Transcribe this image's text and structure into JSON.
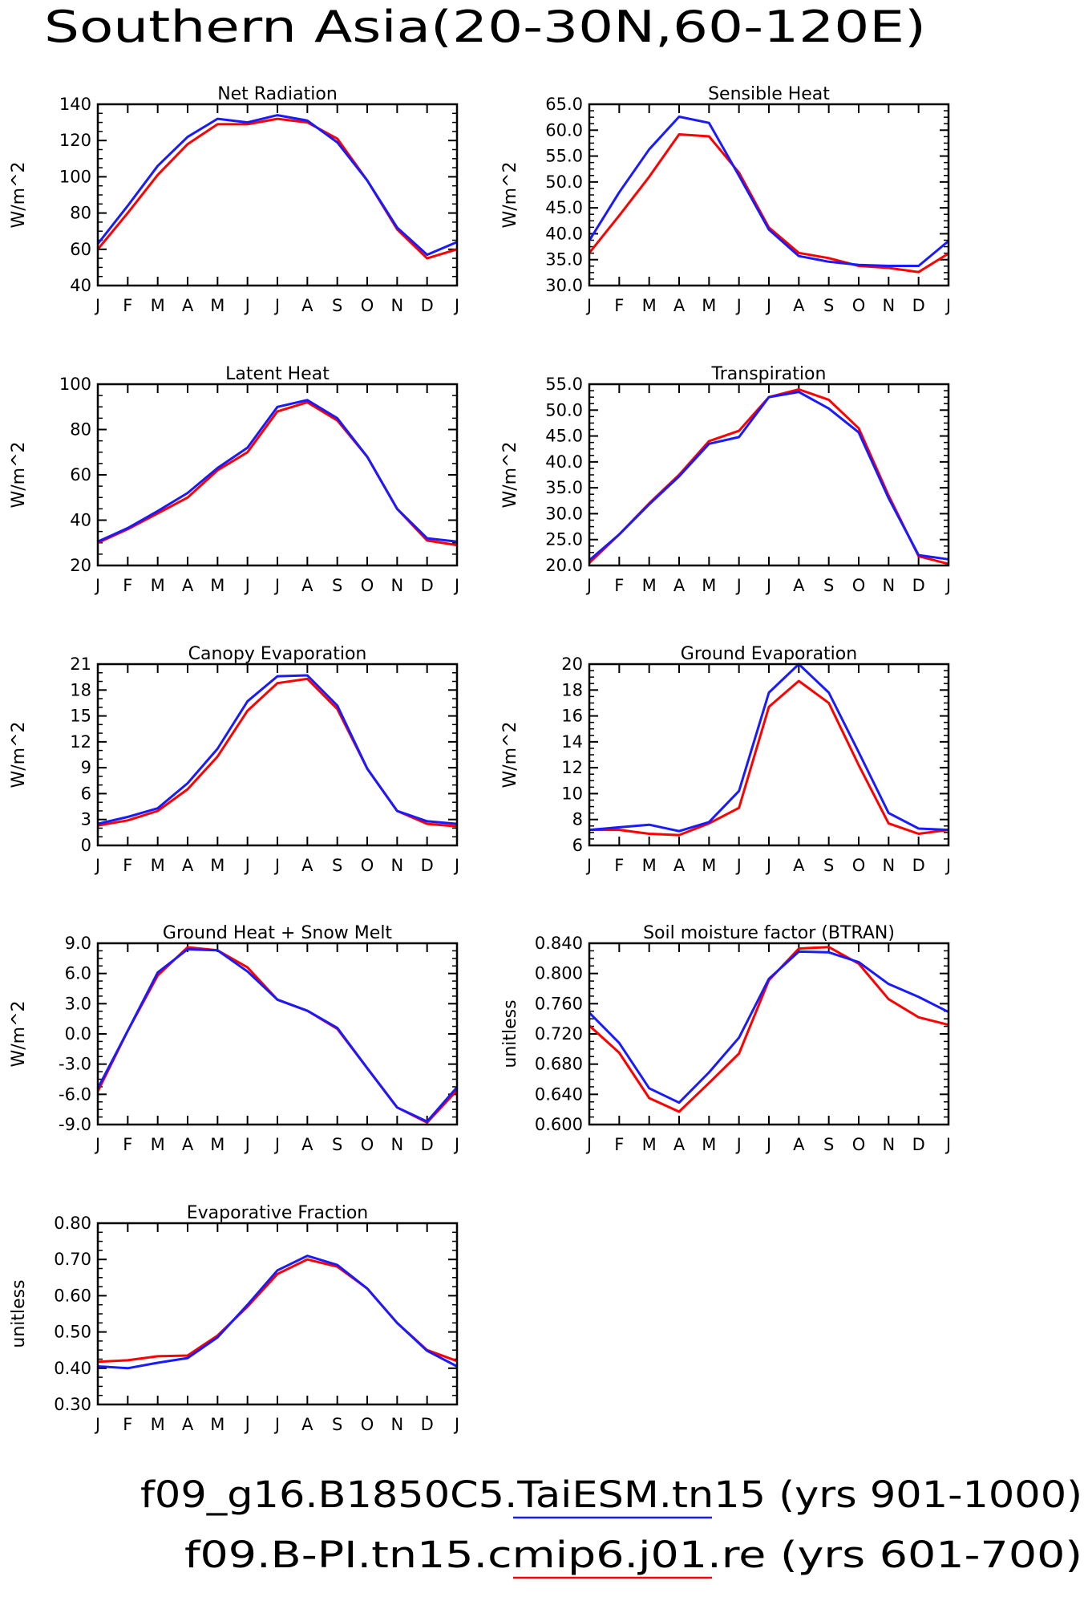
{
  "figure_title": "Southern Asia(20-30N,60-120E)",
  "months": [
    "J",
    "F",
    "M",
    "A",
    "M",
    "J",
    "J",
    "A",
    "S",
    "O",
    "N",
    "D",
    "J"
  ],
  "legend": [
    {
      "label": "f09_g16.B1850C5.TaiESM.tn15 (yrs 901-1000)",
      "color": "#1a1aff"
    },
    {
      "label": "f09.B-PI.tn15.cmip6.j01.re (yrs 601-700)",
      "color": "#ff0000"
    }
  ],
  "colors": {
    "blue": "#1a1aff",
    "red": "#ff0000"
  },
  "chart_data": [
    {
      "type": "line",
      "title": "Net Radiation",
      "ylabel": "W/m^2",
      "ylim": [
        40,
        140
      ],
      "yticks": [
        "40",
        "60",
        "80",
        "100",
        "120",
        "140"
      ],
      "minor_per_major": 4,
      "series": [
        {
          "color": "#ff0000",
          "values": [
            60,
            80,
            101,
            118,
            129,
            129,
            132,
            130,
            121,
            98,
            71,
            55,
            60
          ]
        },
        {
          "color": "#1a1aff",
          "values": [
            63,
            84,
            106,
            122,
            132,
            130,
            134,
            131,
            119,
            98,
            72,
            57,
            64
          ]
        }
      ]
    },
    {
      "type": "line",
      "title": "Sensible Heat",
      "ylabel": "W/m^2",
      "ylim": [
        30,
        65
      ],
      "yticks": [
        "30.0",
        "35.0",
        "40.0",
        "45.0",
        "50.0",
        "55.0",
        "60.0",
        "65.0"
      ],
      "minor_per_major": 4,
      "series": [
        {
          "color": "#ff0000",
          "values": [
            36.3,
            43.5,
            51.0,
            59.2,
            58.8,
            51.8,
            41.2,
            36.3,
            35.3,
            33.8,
            33.4,
            32.6,
            36.2
          ]
        },
        {
          "color": "#1a1aff",
          "values": [
            38.7,
            48.0,
            56.3,
            62.6,
            61.4,
            51.2,
            40.8,
            35.7,
            34.6,
            34.0,
            33.8,
            33.8,
            38.6
          ]
        }
      ]
    },
    {
      "type": "line",
      "title": "Latent Heat",
      "ylabel": "W/m^2",
      "ylim": [
        20,
        100
      ],
      "yticks": [
        "20",
        "40",
        "60",
        "80",
        "100"
      ],
      "minor_per_major": 4,
      "series": [
        {
          "color": "#ff0000",
          "values": [
            30,
            36,
            43,
            50,
            62,
            70,
            88,
            92,
            84,
            68,
            45,
            31,
            29
          ]
        },
        {
          "color": "#1a1aff",
          "values": [
            30.5,
            36.5,
            44,
            52,
            63,
            72,
            90,
            93,
            85,
            68,
            45,
            32,
            30.5
          ]
        }
      ]
    },
    {
      "type": "line",
      "title": "Transpiration",
      "ylabel": "W/m^2",
      "ylim": [
        20,
        55
      ],
      "yticks": [
        "20.0",
        "25.0",
        "30.0",
        "35.0",
        "40.0",
        "45.0",
        "50.0",
        "55.0"
      ],
      "minor_per_major": 4,
      "series": [
        {
          "color": "#ff0000",
          "values": [
            20.5,
            26.0,
            32.0,
            37.5,
            44.0,
            46.0,
            52.5,
            54.0,
            52.0,
            46.5,
            33.5,
            21.8,
            20.3
          ]
        },
        {
          "color": "#1a1aff",
          "values": [
            21.0,
            26.0,
            31.8,
            37.2,
            43.5,
            44.8,
            52.5,
            53.5,
            50.3,
            45.7,
            33.0,
            22.0,
            21.2
          ]
        }
      ]
    },
    {
      "type": "line",
      "title": "Canopy Evaporation",
      "ylabel": "W/m^2",
      "ylim": [
        0,
        21
      ],
      "yticks": [
        "0",
        "3",
        "6",
        "9",
        "12",
        "15",
        "18",
        "21"
      ],
      "minor_per_major": 3,
      "series": [
        {
          "color": "#ff0000",
          "values": [
            2.3,
            2.9,
            4.0,
            6.5,
            10.3,
            15.6,
            18.8,
            19.3,
            15.8,
            8.9,
            4.0,
            2.5,
            2.2
          ]
        },
        {
          "color": "#1a1aff",
          "values": [
            2.5,
            3.3,
            4.3,
            7.2,
            11.2,
            16.7,
            19.6,
            19.7,
            16.2,
            8.9,
            4.0,
            2.8,
            2.5
          ]
        }
      ]
    },
    {
      "type": "line",
      "title": "Ground Evaporation",
      "ylabel": "W/m^2",
      "ylim": [
        6,
        20
      ],
      "yticks": [
        "6",
        "8",
        "10",
        "12",
        "14",
        "16",
        "18",
        "20"
      ],
      "minor_per_major": 4,
      "series": [
        {
          "color": "#ff0000",
          "values": [
            7.2,
            7.2,
            6.9,
            6.8,
            7.7,
            8.9,
            16.7,
            18.7,
            17.0,
            12.2,
            7.7,
            6.9,
            7.2
          ]
        },
        {
          "color": "#1a1aff",
          "values": [
            7.2,
            7.4,
            7.6,
            7.1,
            7.8,
            10.2,
            17.8,
            20.0,
            17.8,
            13.2,
            8.5,
            7.3,
            7.2
          ]
        }
      ]
    },
    {
      "type": "line",
      "title": "Ground Heat + Snow Melt",
      "ylabel": "W/m^2",
      "ylim": [
        -9,
        9
      ],
      "yticks": [
        "-9.0",
        "-6.0",
        "-3.0",
        "0.0",
        "3.0",
        "6.0",
        "9.0"
      ],
      "minor_per_major": 4,
      "series": [
        {
          "color": "#ff0000",
          "values": [
            -5.7,
            0.3,
            5.8,
            8.6,
            8.3,
            6.6,
            3.4,
            2.3,
            0.5,
            -3.4,
            -7.3,
            -8.8,
            -5.6
          ]
        },
        {
          "color": "#1a1aff",
          "values": [
            -5.4,
            0.3,
            6.1,
            8.4,
            8.3,
            6.2,
            3.4,
            2.3,
            0.6,
            -3.4,
            -7.3,
            -8.7,
            -5.3
          ]
        }
      ]
    },
    {
      "type": "line",
      "title": "Soil moisture factor (BTRAN)",
      "ylabel": "unitless",
      "ylim": [
        0.6,
        0.84
      ],
      "yticks": [
        "0.600",
        "0.640",
        "0.680",
        "0.720",
        "0.760",
        "0.800",
        "0.840"
      ],
      "minor_per_major": 4,
      "series": [
        {
          "color": "#ff0000",
          "values": [
            0.731,
            0.695,
            0.635,
            0.617,
            0.655,
            0.694,
            0.791,
            0.833,
            0.835,
            0.813,
            0.766,
            0.742,
            0.732
          ]
        },
        {
          "color": "#1a1aff",
          "values": [
            0.748,
            0.708,
            0.648,
            0.629,
            0.669,
            0.715,
            0.793,
            0.829,
            0.828,
            0.815,
            0.786,
            0.769,
            0.749
          ]
        }
      ]
    },
    {
      "type": "line",
      "title": "Evaporative Fraction",
      "ylabel": "unitless",
      "ylim": [
        0.3,
        0.8
      ],
      "yticks": [
        "0.30",
        "0.40",
        "0.50",
        "0.60",
        "0.70",
        "0.80"
      ],
      "minor_per_major": 4,
      "series": [
        {
          "color": "#ff0000",
          "values": [
            0.418,
            0.422,
            0.433,
            0.435,
            0.49,
            0.57,
            0.66,
            0.7,
            0.68,
            0.62,
            0.525,
            0.45,
            0.42
          ]
        },
        {
          "color": "#1a1aff",
          "values": [
            0.405,
            0.4,
            0.415,
            0.428,
            0.485,
            0.575,
            0.67,
            0.71,
            0.685,
            0.62,
            0.525,
            0.448,
            0.405
          ]
        }
      ]
    }
  ]
}
